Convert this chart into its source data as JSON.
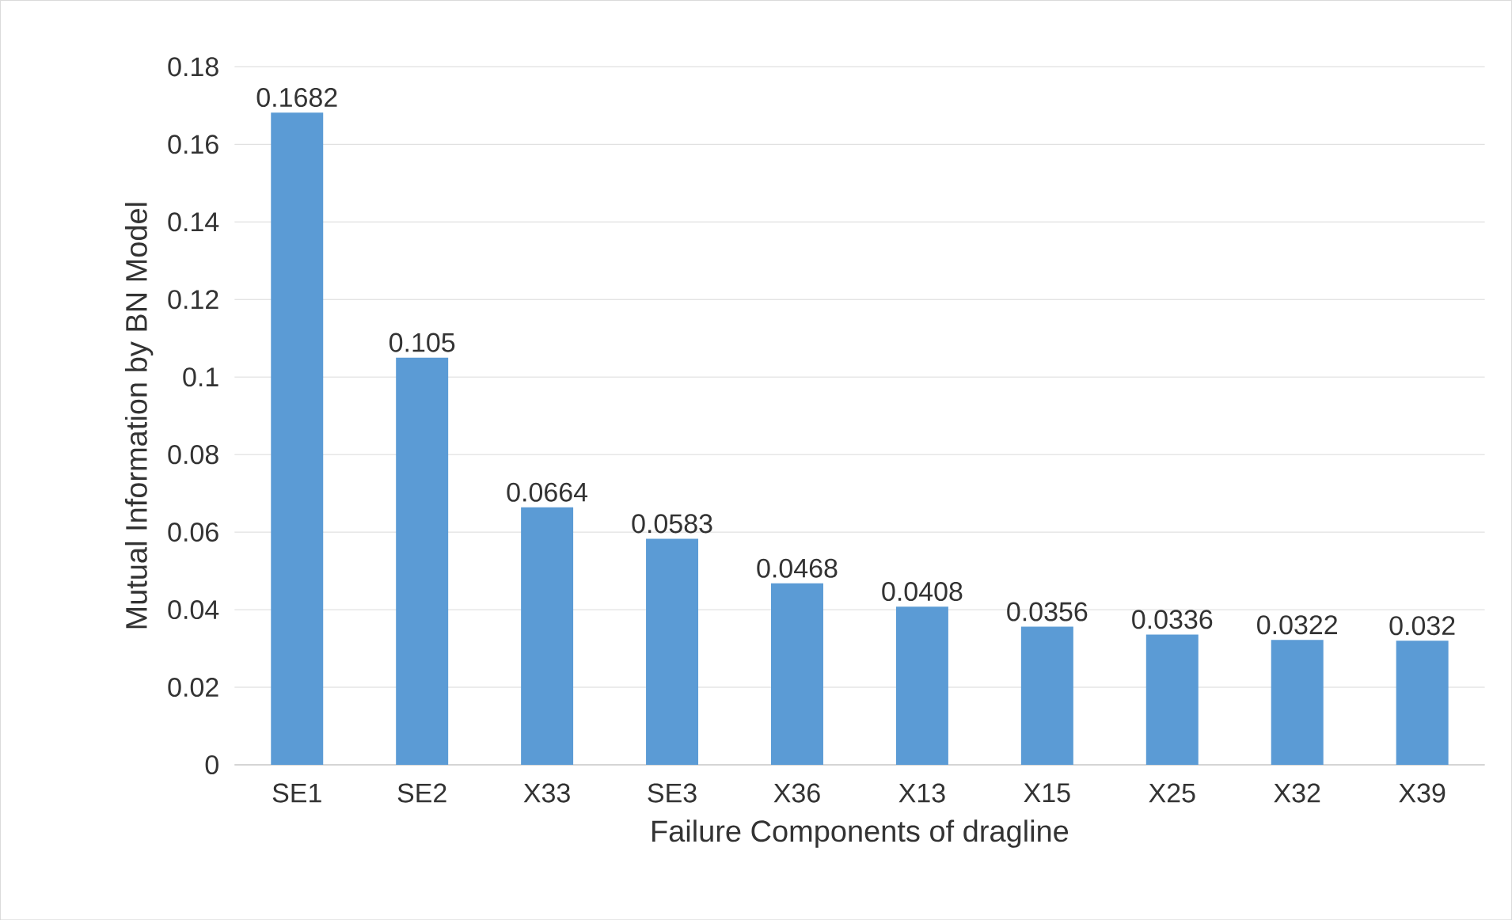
{
  "chart_data": {
    "type": "bar",
    "xlabel": "Failure Components of dragline",
    "ylabel": "Mutual Information by BN Model",
    "categories": [
      "SE1",
      "SE2",
      "X33",
      "SE3",
      "X36",
      "X13",
      "X15",
      "X25",
      "X32",
      "X39"
    ],
    "values": [
      0.1682,
      0.105,
      0.0664,
      0.0583,
      0.0468,
      0.0408,
      0.0356,
      0.0336,
      0.0322,
      0.032
    ],
    "color": "#5b9bd5",
    "data_labels": true,
    "grid": "y",
    "ylim": [
      0,
      0.18
    ],
    "yticks": [
      0,
      0.02,
      0.04,
      0.06,
      0.08,
      0.1,
      0.12,
      0.14,
      0.16,
      0.18
    ]
  }
}
